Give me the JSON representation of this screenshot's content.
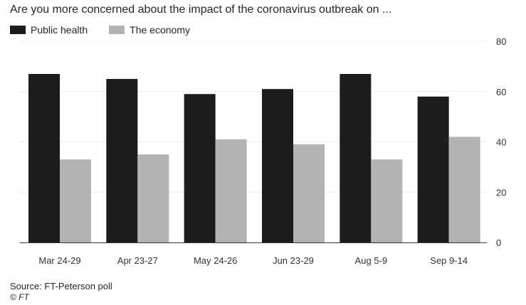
{
  "chart_data": {
    "type": "bar",
    "title": "Are you more concerned about the impact of the coronavirus outbreak on ...",
    "categories": [
      "Mar 24-29",
      "Apr 23-27",
      "May 24-26",
      "Jun 23-29",
      "Aug 5-9",
      "Sep 9-14"
    ],
    "series": [
      {
        "name": "Public health",
        "color": "#1c1c1c",
        "values": [
          67,
          65,
          59,
          61,
          67,
          58
        ]
      },
      {
        "name": "The economy",
        "color": "#b3b3b3",
        "values": [
          33,
          35,
          41,
          39,
          33,
          42
        ]
      }
    ],
    "ylim": [
      0,
      80
    ],
    "yticks": [
      0,
      20,
      40,
      60,
      80
    ],
    "grid": true,
    "legend_position": "top-left",
    "source": "Source: FT-Peterson poll",
    "copyright": "© FT"
  }
}
